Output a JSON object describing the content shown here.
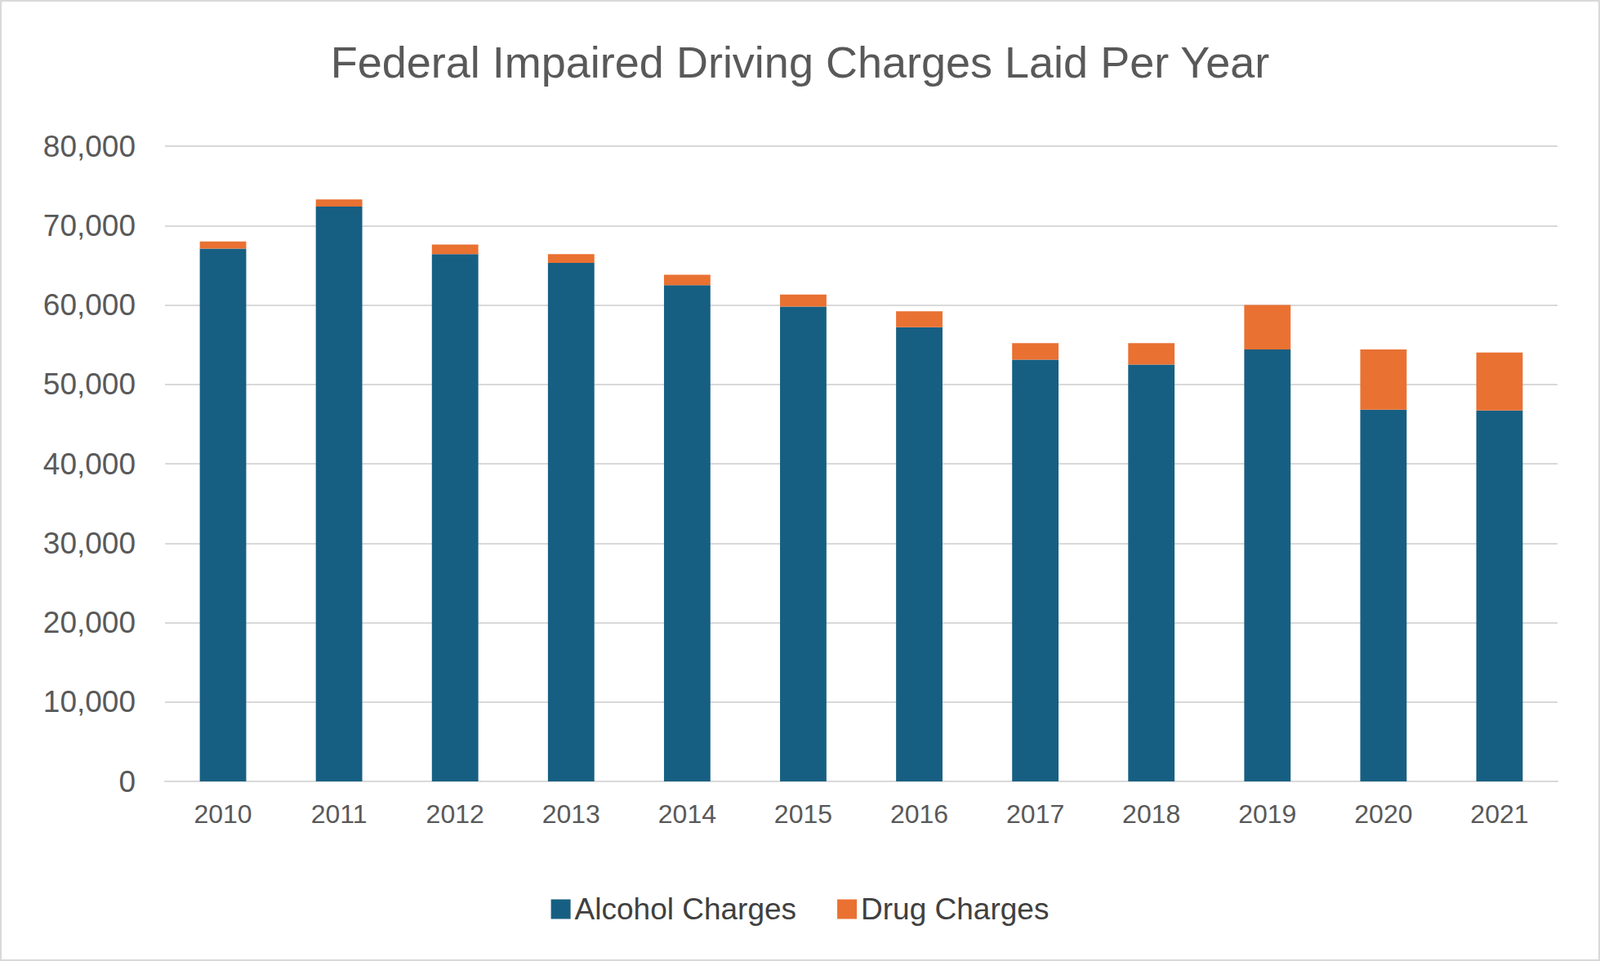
{
  "chart_data": {
    "type": "bar",
    "title": "Federal Impaired Driving Charges Laid Per Year",
    "categories": [
      "2010",
      "2011",
      "2012",
      "2013",
      "2014",
      "2015",
      "2016",
      "2017",
      "2018",
      "2019",
      "2020",
      "2021"
    ],
    "series": [
      {
        "name": "Alcohol Charges",
        "color": "#175f82",
        "values": [
          67100,
          72400,
          66400,
          65300,
          62500,
          59800,
          57200,
          53100,
          52500,
          54400,
          46800,
          46700
        ]
      },
      {
        "name": "Drug Charges",
        "color": "#e97132",
        "values": [
          900,
          900,
          1200,
          1100,
          1300,
          1500,
          2000,
          2100,
          2700,
          5600,
          7600,
          7300
        ]
      }
    ],
    "ylim": [
      0,
      80000
    ],
    "yticks": [
      0,
      {
        "value": 10000,
        "label": "10,000"
      },
      {
        "value": 20000,
        "label": "20,000"
      },
      {
        "value": 30000,
        "label": "30,000"
      },
      {
        "value": 40000,
        "label": "40,000"
      },
      {
        "value": 50000,
        "label": "50,000"
      },
      {
        "value": 60000,
        "label": "60,000"
      },
      {
        "value": 70000,
        "label": "70,000"
      },
      {
        "value": 80000,
        "label": "80,000"
      }
    ],
    "stacked": true,
    "grid": true,
    "legend": "bottom"
  }
}
